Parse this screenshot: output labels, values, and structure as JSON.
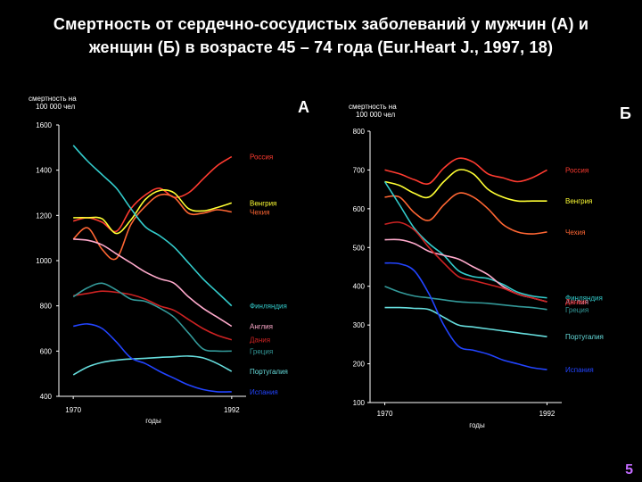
{
  "slide": {
    "title_line1": "Смертность от сердечно-сосудистых заболеваний у мужчин (А) и",
    "title_line2": "женщин (Б) в возрасте 45 – 74 года (Eur.Heart J., 1997, 18)",
    "page_number": "5"
  },
  "chart_data": [
    {
      "type": "line",
      "panel": "А",
      "ylabel_line1": "смертность на",
      "ylabel_line2": "100 000 чел",
      "xlabel": "годы",
      "x_ticks": [
        "1970",
        "1992"
      ],
      "y_ticks": [
        "400",
        "600",
        "800",
        "1000",
        "1200",
        "1400",
        "1600"
      ],
      "ylim": [
        400,
        1600
      ],
      "xlim": [
        1968,
        1994
      ],
      "x": [
        1970,
        1972,
        1974,
        1976,
        1978,
        1980,
        1982,
        1984,
        1986,
        1988,
        1990,
        1992
      ],
      "series": [
        {
          "name": "Россия",
          "color": "#ff3b30",
          "label_y": 1460,
          "values": [
            1175,
            1190,
            1170,
            1130,
            1230,
            1290,
            1320,
            1280,
            1300,
            1360,
            1420,
            1460
          ]
        },
        {
          "name": "Венгрия",
          "color": "#ffff33",
          "label_y": 1255,
          "values": [
            1190,
            1190,
            1185,
            1120,
            1180,
            1270,
            1310,
            1300,
            1230,
            1220,
            1235,
            1255
          ]
        },
        {
          "name": "Чехия",
          "color": "#ff6633",
          "label_y": 1215,
          "values": [
            1095,
            1145,
            1050,
            1010,
            1160,
            1240,
            1290,
            1280,
            1210,
            1210,
            1225,
            1215
          ]
        },
        {
          "name": "Финляндия",
          "color": "#33cccc",
          "label_y": 800,
          "values": [
            1510,
            1440,
            1380,
            1320,
            1230,
            1150,
            1110,
            1060,
            990,
            920,
            860,
            800
          ]
        },
        {
          "name": "Англия",
          "color": "#ffaacc",
          "label_y": 710,
          "values": [
            1095,
            1090,
            1070,
            1030,
            990,
            950,
            920,
            900,
            840,
            790,
            750,
            710
          ]
        },
        {
          "name": "Дания",
          "color": "#cc2222",
          "label_y": 650,
          "values": [
            845,
            855,
            865,
            860,
            850,
            830,
            800,
            780,
            740,
            700,
            670,
            650
          ]
        },
        {
          "name": "Греция",
          "color": "#339999",
          "label_y": 600,
          "values": [
            840,
            880,
            900,
            870,
            830,
            820,
            790,
            750,
            680,
            610,
            600,
            600
          ]
        },
        {
          "name": "Португалия",
          "color": "#66dddd",
          "label_y": 510,
          "values": [
            495,
            530,
            550,
            560,
            565,
            568,
            572,
            575,
            578,
            570,
            545,
            510
          ]
        },
        {
          "name": "Испания",
          "color": "#2244ff",
          "label_y": 420,
          "values": [
            710,
            720,
            700,
            640,
            570,
            545,
            510,
            480,
            450,
            430,
            420,
            420
          ]
        }
      ]
    },
    {
      "type": "line",
      "panel": "Б",
      "ylabel_line1": "смертность на",
      "ylabel_line2": "100 000 чел",
      "xlabel": "годы",
      "x_ticks": [
        "1970",
        "1992"
      ],
      "y_ticks": [
        "100",
        "200",
        "300",
        "400",
        "500",
        "600",
        "700",
        "800"
      ],
      "ylim": [
        100,
        800
      ],
      "xlim": [
        1968,
        1994
      ],
      "x": [
        1970,
        1972,
        1974,
        1976,
        1978,
        1980,
        1982,
        1984,
        1986,
        1988,
        1990,
        1992
      ],
      "series": [
        {
          "name": "Россия",
          "color": "#ff3b30",
          "label_y": 700,
          "values": [
            700,
            690,
            675,
            665,
            705,
            730,
            720,
            690,
            680,
            670,
            680,
            700
          ]
        },
        {
          "name": "Венгрия",
          "color": "#ffff33",
          "label_y": 620,
          "values": [
            670,
            660,
            640,
            630,
            670,
            700,
            690,
            650,
            630,
            620,
            620,
            620
          ]
        },
        {
          "name": "Чехия",
          "color": "#ff6633",
          "label_y": 540,
          "values": [
            630,
            630,
            590,
            570,
            610,
            640,
            630,
            600,
            560,
            540,
            535,
            540
          ]
        },
        {
          "name": "Финляндия",
          "color": "#33cccc",
          "label_y": 370,
          "values": [
            670,
            610,
            550,
            510,
            480,
            440,
            425,
            420,
            405,
            385,
            375,
            370
          ]
        },
        {
          "name": "Англия",
          "color": "#ffaacc",
          "label_y": 360,
          "values": [
            520,
            520,
            510,
            490,
            480,
            470,
            450,
            430,
            400,
            380,
            370,
            360
          ]
        },
        {
          "name": "Греция",
          "color": "#339999",
          "label_y": 340,
          "values": [
            400,
            385,
            375,
            370,
            365,
            360,
            358,
            356,
            352,
            348,
            345,
            340
          ]
        },
        {
          "name": "Дания",
          "color": "#cc2222",
          "label_y": 360,
          "values": [
            560,
            565,
            545,
            500,
            460,
            425,
            415,
            405,
            395,
            380,
            370,
            360
          ]
        },
        {
          "name": "Португалия",
          "color": "#66dddd",
          "label_y": 270,
          "values": [
            345,
            345,
            343,
            340,
            320,
            300,
            295,
            290,
            285,
            280,
            275,
            270
          ]
        },
        {
          "name": "Испания",
          "color": "#2244ff",
          "label_y": 185,
          "values": [
            460,
            458,
            440,
            380,
            300,
            245,
            235,
            225,
            210,
            200,
            190,
            185
          ]
        }
      ]
    }
  ]
}
